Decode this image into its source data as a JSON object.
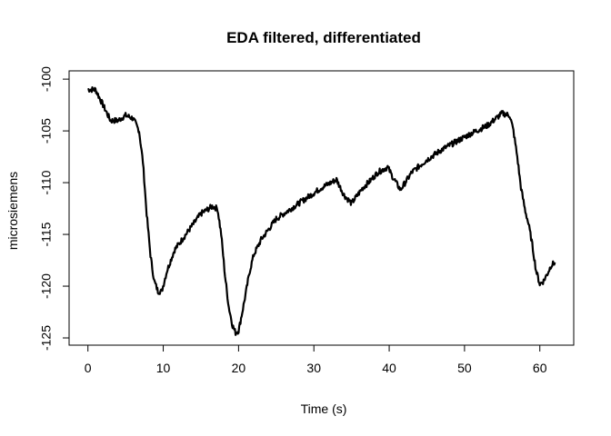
{
  "chart_data": {
    "type": "line",
    "title": "EDA filtered, differentiated",
    "xlabel": "Time (s)",
    "ylabel": "microsiemens",
    "xlim": [
      -2.5,
      64.5
    ],
    "ylim": [
      -125.7,
      -99.2
    ],
    "x_ticks": [
      0,
      10,
      20,
      30,
      40,
      50,
      60
    ],
    "y_ticks": [
      -100,
      -105,
      -110,
      -115,
      -120,
      -125
    ],
    "grid": false,
    "legend": "none",
    "line_color": "#000000",
    "series": [
      {
        "x": [
          0.0,
          1.0,
          2.0,
          3.0,
          4.0,
          5.0,
          6.0,
          6.8,
          7.3,
          7.8,
          8.3,
          8.8,
          9.3,
          9.8,
          10.5,
          11.5,
          13.0,
          15.0,
          16.5,
          17.2,
          17.7,
          18.2,
          18.7,
          19.2,
          19.6,
          20.0,
          20.5,
          21.0,
          21.5,
          22.0,
          23.0,
          24.0,
          25.0,
          27.0,
          29.0,
          31.0,
          33.0,
          34.0,
          35.0,
          36.5,
          37.5,
          38.5,
          39.8,
          40.5,
          41.5,
          43.0,
          45.0,
          47.0,
          49.0,
          51.0,
          53.0,
          55.0,
          56.0,
          56.5,
          57.0,
          57.5,
          58.0,
          58.5,
          59.0,
          59.5,
          60.0,
          60.5,
          61.0,
          61.5,
          62.0
        ],
        "y": [
          -101.0,
          -101.0,
          -102.5,
          -104.0,
          -104.0,
          -103.5,
          -103.8,
          -105.0,
          -108.0,
          -113.0,
          -117.0,
          -119.5,
          -120.5,
          -120.5,
          -118.5,
          -116.5,
          -115.0,
          -113.0,
          -112.3,
          -112.5,
          -115.0,
          -119.0,
          -122.0,
          -123.8,
          -124.5,
          -124.3,
          -122.5,
          -120.5,
          -118.5,
          -117.0,
          -115.5,
          -114.5,
          -113.5,
          -112.5,
          -111.5,
          -110.5,
          -109.7,
          -111.2,
          -112.0,
          -110.5,
          -109.8,
          -109.0,
          -108.5,
          -109.5,
          -110.7,
          -109.0,
          -107.8,
          -106.8,
          -106.0,
          -105.2,
          -104.5,
          -103.3,
          -103.5,
          -105.0,
          -107.5,
          -110.5,
          -112.5,
          -114.0,
          -116.0,
          -118.5,
          -119.8,
          -119.5,
          -118.8,
          -118.0,
          -117.7
        ]
      }
    ]
  }
}
